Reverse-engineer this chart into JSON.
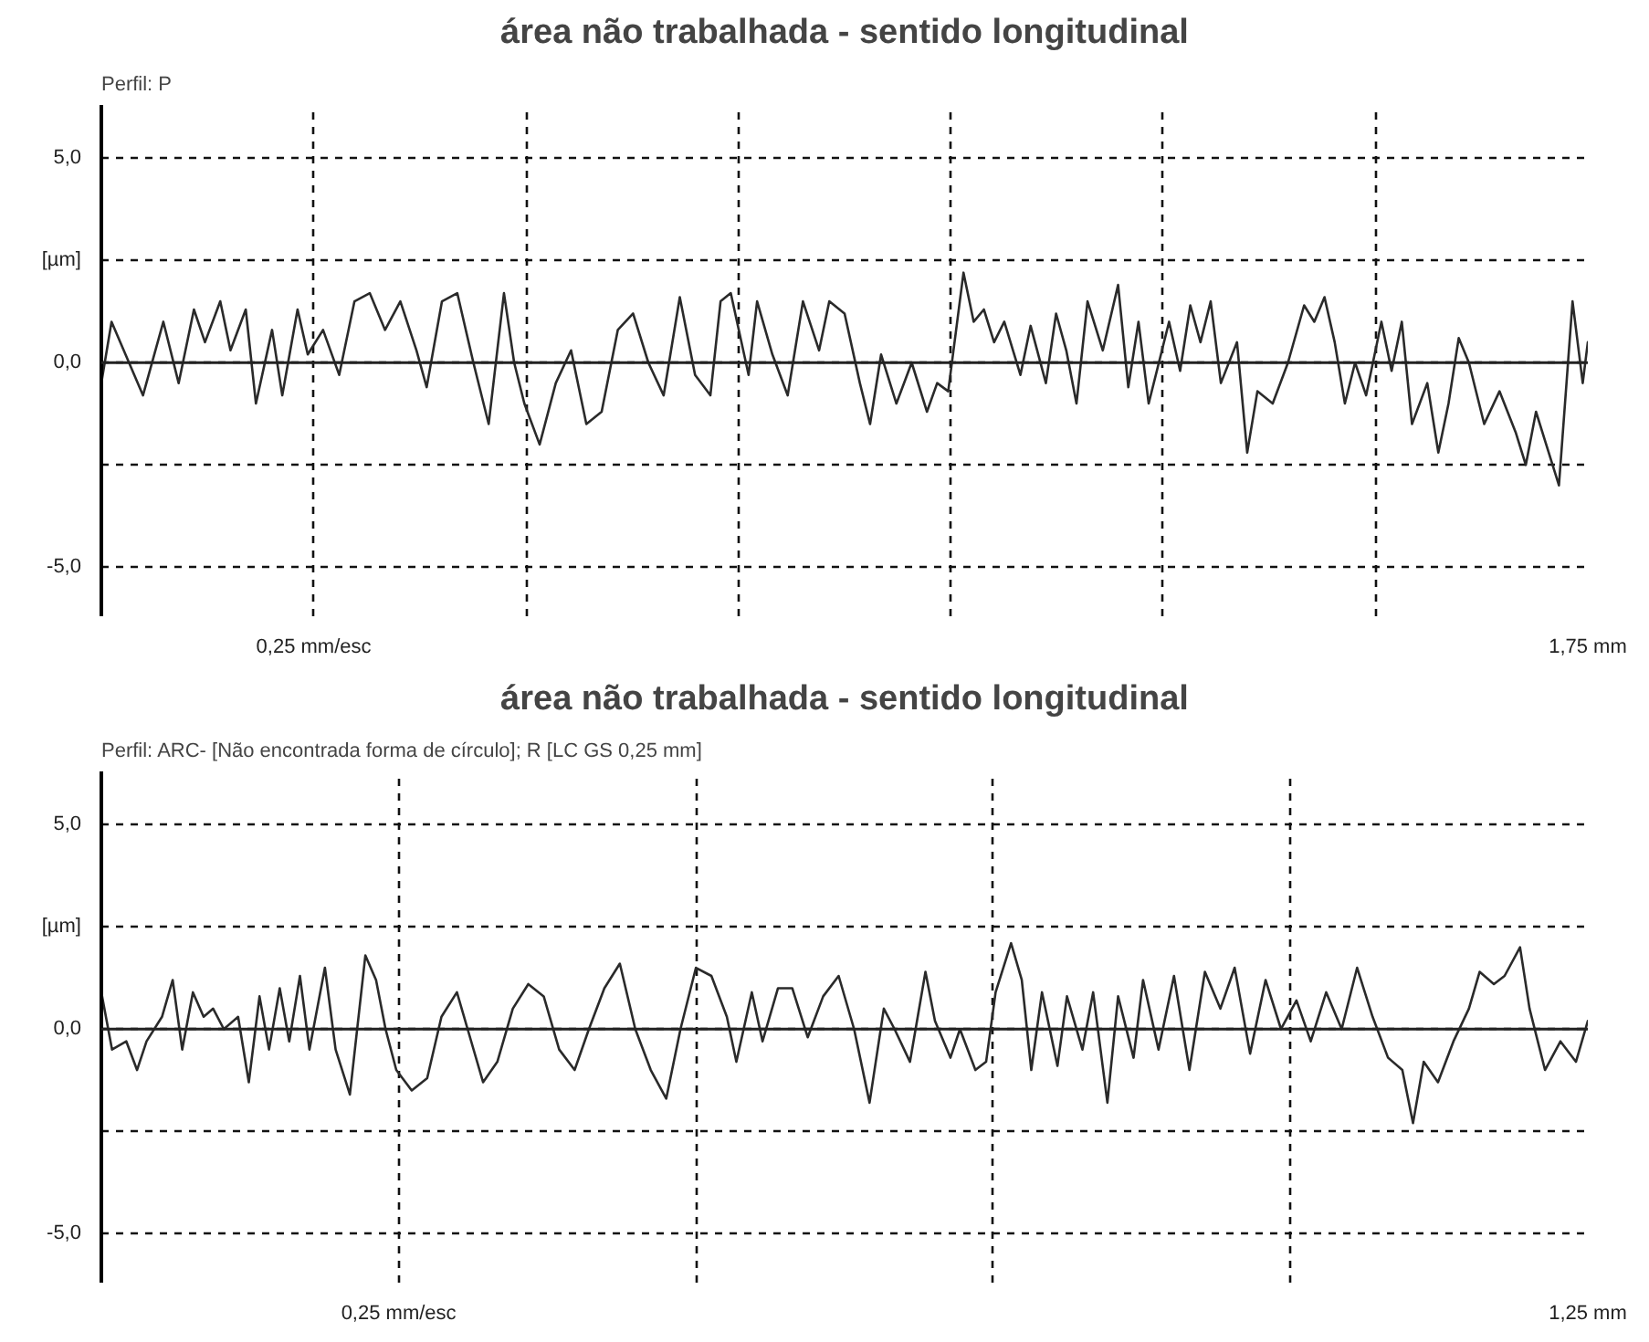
{
  "chart_data": [
    {
      "type": "line",
      "title": "área não trabalhada - sentido longitudinal",
      "subtitle": "Perfil: P",
      "xlim": [
        0,
        1.75
      ],
      "ylim": [
        -6.2,
        6.3
      ],
      "xticks": [
        {
          "value": 0.25,
          "label": "0,25 mm/esc"
        },
        {
          "value": 0.5,
          "label": null
        },
        {
          "value": 0.75,
          "label": null
        },
        {
          "value": 1.0,
          "label": null
        },
        {
          "value": 1.25,
          "label": null
        },
        {
          "value": 1.5,
          "label": null
        },
        {
          "value": 1.75,
          "label": "1,75 mm"
        }
      ],
      "yticks": [
        {
          "value": -5,
          "label": "-5,0"
        },
        {
          "value": -2.5,
          "label": null
        },
        {
          "value": 0,
          "label": "0,0"
        },
        {
          "value": 2.5,
          "label": "[µm]"
        },
        {
          "value": 5,
          "label": "5,0"
        }
      ],
      "grid": true,
      "ref_lines": [
        {
          "axis": "y",
          "value": 0,
          "label": null,
          "color": "#222222"
        }
      ],
      "series": [
        {
          "color": "#2a2a2a",
          "x": [
            0,
            0.012,
            0.049,
            0.073,
            0.091,
            0.109,
            0.122,
            0.14,
            0.152,
            0.17,
            0.182,
            0.201,
            0.213,
            0.231,
            0.243,
            0.261,
            0.28,
            0.298,
            0.316,
            0.334,
            0.352,
            0.371,
            0.383,
            0.401,
            0.419,
            0.438,
            0.456,
            0.474,
            0.486,
            0.498,
            0.516,
            0.535,
            0.553,
            0.571,
            0.589,
            0.608,
            0.626,
            0.644,
            0.662,
            0.681,
            0.699,
            0.717,
            0.729,
            0.741,
            0.762,
            0.772,
            0.79,
            0.808,
            0.826,
            0.845,
            0.857,
            0.875,
            0.893,
            0.905,
            0.918,
            0.936,
            0.954,
            0.972,
            0.984,
            0.997,
            1.015,
            1.027,
            1.039,
            1.051,
            1.063,
            1.082,
            1.094,
            1.112,
            1.124,
            1.136,
            1.148,
            1.161,
            1.179,
            1.197,
            1.209,
            1.221,
            1.233,
            1.257,
            1.27,
            1.282,
            1.294,
            1.306,
            1.318,
            1.337,
            1.349,
            1.361,
            1.379,
            1.397,
            1.416,
            1.428,
            1.44,
            1.452,
            1.464,
            1.476,
            1.489,
            1.507,
            1.519,
            1.531,
            1.543,
            1.561,
            1.574,
            1.586,
            1.598,
            1.61,
            1.628,
            1.646,
            1.665,
            1.677,
            1.689,
            1.701,
            1.716,
            1.732,
            1.744,
            1.75
          ],
          "values": [
            -0.5,
            1.0,
            -0.8,
            1.0,
            -0.5,
            1.3,
            0.5,
            1.5,
            0.3,
            1.3,
            -1.0,
            0.8,
            -0.8,
            1.3,
            0.2,
            0.8,
            -0.3,
            1.5,
            1.7,
            0.8,
            1.5,
            0.3,
            -0.6,
            1.5,
            1.7,
            0,
            -1.5,
            1.7,
            0,
            -1.0,
            -2.0,
            -0.5,
            0.3,
            -1.5,
            -1.2,
            0.8,
            1.2,
            0,
            -0.8,
            1.6,
            -0.3,
            -0.8,
            1.5,
            1.7,
            -0.3,
            1.5,
            0.2,
            -0.8,
            1.5,
            0.3,
            1.5,
            1.2,
            -0.5,
            -1.5,
            0.2,
            -1.0,
            0,
            -1.2,
            -0.5,
            -0.7,
            2.2,
            1.0,
            1.3,
            0.5,
            1.0,
            -0.3,
            0.9,
            -0.5,
            1.2,
            0.3,
            -1.0,
            1.5,
            0.3,
            1.9,
            -0.6,
            1.0,
            -1.0,
            1.0,
            -0.2,
            1.4,
            0.5,
            1.5,
            -0.5,
            0.5,
            -2.2,
            -0.7,
            -1.0,
            0,
            1.4,
            1.0,
            1.6,
            0.5,
            -1.0,
            0,
            -0.8,
            1.0,
            -0.2,
            1.0,
            -1.5,
            -0.5,
            -2.2,
            -1.0,
            0.6,
            0,
            -1.5,
            -0.7,
            -1.7,
            -2.5,
            -1.2,
            -2.0,
            -3.0,
            1.5,
            -0.5,
            0.5
          ]
        }
      ]
    },
    {
      "type": "line",
      "title": "área não trabalhada - sentido longitudinal",
      "subtitle": "Perfil: ARC- [Não encontrada forma de círculo]; R [LC GS 0,25 mm]",
      "xlim": [
        0,
        1.25
      ],
      "ylim": [
        -6.2,
        6.3
      ],
      "xticks": [
        {
          "value": 0.25,
          "label": "0,25 mm/esc"
        },
        {
          "value": 0.5,
          "label": null
        },
        {
          "value": 0.75,
          "label": null
        },
        {
          "value": 1.0,
          "label": null
        },
        {
          "value": 1.25,
          "label": "1,25 mm"
        }
      ],
      "yticks": [
        {
          "value": -5,
          "label": "-5,0"
        },
        {
          "value": -2.5,
          "label": null
        },
        {
          "value": 0,
          "label": "0,0"
        },
        {
          "value": 2.5,
          "label": "[µm]"
        },
        {
          "value": 5,
          "label": "5,0"
        }
      ],
      "grid": true,
      "ref_lines": [
        {
          "axis": "y",
          "value": 0,
          "label": null,
          "color": "#222222"
        }
      ],
      "series": [
        {
          "color": "#2a2a2a",
          "x": [
            0,
            0.009,
            0.021,
            0.03,
            0.038,
            0.051,
            0.06,
            0.068,
            0.077,
            0.086,
            0.094,
            0.103,
            0.115,
            0.124,
            0.133,
            0.141,
            0.15,
            0.158,
            0.167,
            0.175,
            0.188,
            0.197,
            0.209,
            0.222,
            0.231,
            0.239,
            0.248,
            0.261,
            0.274,
            0.286,
            0.299,
            0.308,
            0.321,
            0.333,
            0.346,
            0.359,
            0.372,
            0.385,
            0.398,
            0.41,
            0.423,
            0.436,
            0.449,
            0.462,
            0.475,
            0.487,
            0.5,
            0.513,
            0.526,
            0.534,
            0.547,
            0.556,
            0.569,
            0.581,
            0.594,
            0.607,
            0.62,
            0.633,
            0.646,
            0.658,
            0.667,
            0.68,
            0.693,
            0.701,
            0.714,
            0.722,
            0.735,
            0.744,
            0.752,
            0.765,
            0.774,
            0.782,
            0.791,
            0.804,
            0.812,
            0.825,
            0.834,
            0.846,
            0.855,
            0.868,
            0.876,
            0.889,
            0.902,
            0.915,
            0.928,
            0.941,
            0.953,
            0.966,
            0.979,
            0.992,
            1.005,
            1.017,
            1.03,
            1.043,
            1.056,
            1.069,
            1.082,
            1.094,
            1.103,
            1.112,
            1.124,
            1.137,
            1.15,
            1.159,
            1.171,
            1.18,
            1.193,
            1.201,
            1.214,
            1.227,
            1.24,
            1.25
          ],
          "values": [
            0.9,
            -0.5,
            -0.3,
            -1.0,
            -0.3,
            0.3,
            1.2,
            -0.5,
            0.9,
            0.3,
            0.5,
            0,
            0.3,
            -1.3,
            0.8,
            -0.5,
            1.0,
            -0.3,
            1.3,
            -0.5,
            1.5,
            -0.5,
            -1.6,
            1.8,
            1.2,
            0,
            -1.0,
            -1.5,
            -1.2,
            0.3,
            0.9,
            0,
            -1.3,
            -0.8,
            0.5,
            1.1,
            0.8,
            -0.5,
            -1.0,
            0,
            1.0,
            1.6,
            0,
            -1.0,
            -1.7,
            0,
            1.5,
            1.3,
            0.3,
            -0.8,
            0.9,
            -0.3,
            1.0,
            1.0,
            -0.2,
            0.8,
            1.3,
            0,
            -1.8,
            0.5,
            0,
            -0.8,
            1.4,
            0.2,
            -0.7,
            0,
            -1.0,
            -0.8,
            0.9,
            2.1,
            1.2,
            -1.0,
            0.9,
            -0.9,
            0.8,
            -0.5,
            0.9,
            -1.8,
            0.8,
            -0.7,
            1.2,
            -0.5,
            1.3,
            -1.0,
            1.4,
            0.5,
            1.5,
            -0.6,
            1.2,
            0,
            0.7,
            -0.3,
            0.9,
            0,
            1.5,
            0.3,
            -0.7,
            -1.0,
            -2.3,
            -0.8,
            -1.3,
            -0.3,
            0.5,
            1.4,
            1.1,
            1.3,
            2.0,
            0.5,
            -1.0,
            -0.3,
            -0.8,
            0.2
          ]
        }
      ]
    }
  ]
}
